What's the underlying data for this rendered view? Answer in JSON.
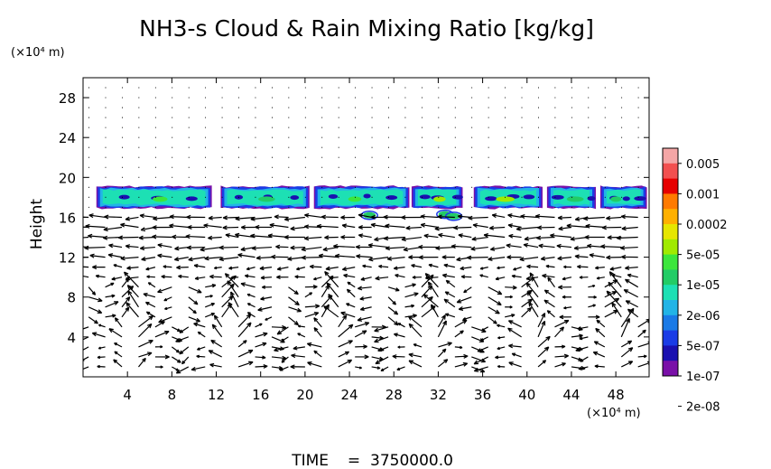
{
  "chart_data": {
    "type": "heatmap",
    "title": "NH3-s Cloud & Rain Mixing Ratio [kg/kg]",
    "ylabel": "Height",
    "y_unit": "(×10⁴ m)",
    "x_unit": "(×10⁴ m)",
    "xlim": [
      0,
      51
    ],
    "ylim": [
      0,
      30
    ],
    "x_ticks": [
      4,
      8,
      12,
      16,
      20,
      24,
      28,
      32,
      36,
      40,
      44,
      48
    ],
    "y_ticks": [
      4,
      8,
      12,
      16,
      20,
      24,
      28
    ],
    "grid": false,
    "legend_position": "right",
    "colorbar": {
      "labels": [
        "0.005",
        "0.001",
        "0.0002",
        "5e-05",
        "1e-05",
        "2e-06",
        "5e-07",
        "1e-07",
        "2e-08"
      ],
      "colors": [
        "#f4a6a6",
        "#f25050",
        "#e60000",
        "#ff7a00",
        "#ffb000",
        "#e6e600",
        "#a0ea00",
        "#3ce63c",
        "#22cc66",
        "#1de0b4",
        "#22b4e6",
        "#1a7ae6",
        "#1a3ce6",
        "#1a10b0",
        "#7a10a8"
      ]
    },
    "cloud_layer": {
      "base_height": 16.8,
      "top_height": 19.2,
      "segments": [
        {
          "x": [
            1.2,
            11.6
          ],
          "peak": "1e-05"
        },
        {
          "x": [
            12.4,
            20.4
          ],
          "peak": "2e-06"
        },
        {
          "x": [
            20.8,
            29.4
          ],
          "peak": "1e-05"
        },
        {
          "x": [
            29.6,
            34.2
          ],
          "peak": "5e-05"
        },
        {
          "x": [
            35.2,
            41.4
          ],
          "peak": "5e-05"
        },
        {
          "x": [
            41.8,
            46.2
          ],
          "peak": "2e-06"
        },
        {
          "x": [
            46.6,
            50.8
          ],
          "peak": "2e-06"
        }
      ]
    },
    "vector_field": {
      "description_free": true,
      "regime": [
        {
          "height_range": [
            17,
            30
          ],
          "flow": "calm"
        },
        {
          "height_range": [
            10,
            17
          ],
          "flow": "westward"
        },
        {
          "height_range": [
            0,
            10
          ],
          "flow": "convective-cells"
        }
      ]
    },
    "time_label": "TIME",
    "time_value": "3750000.0"
  }
}
